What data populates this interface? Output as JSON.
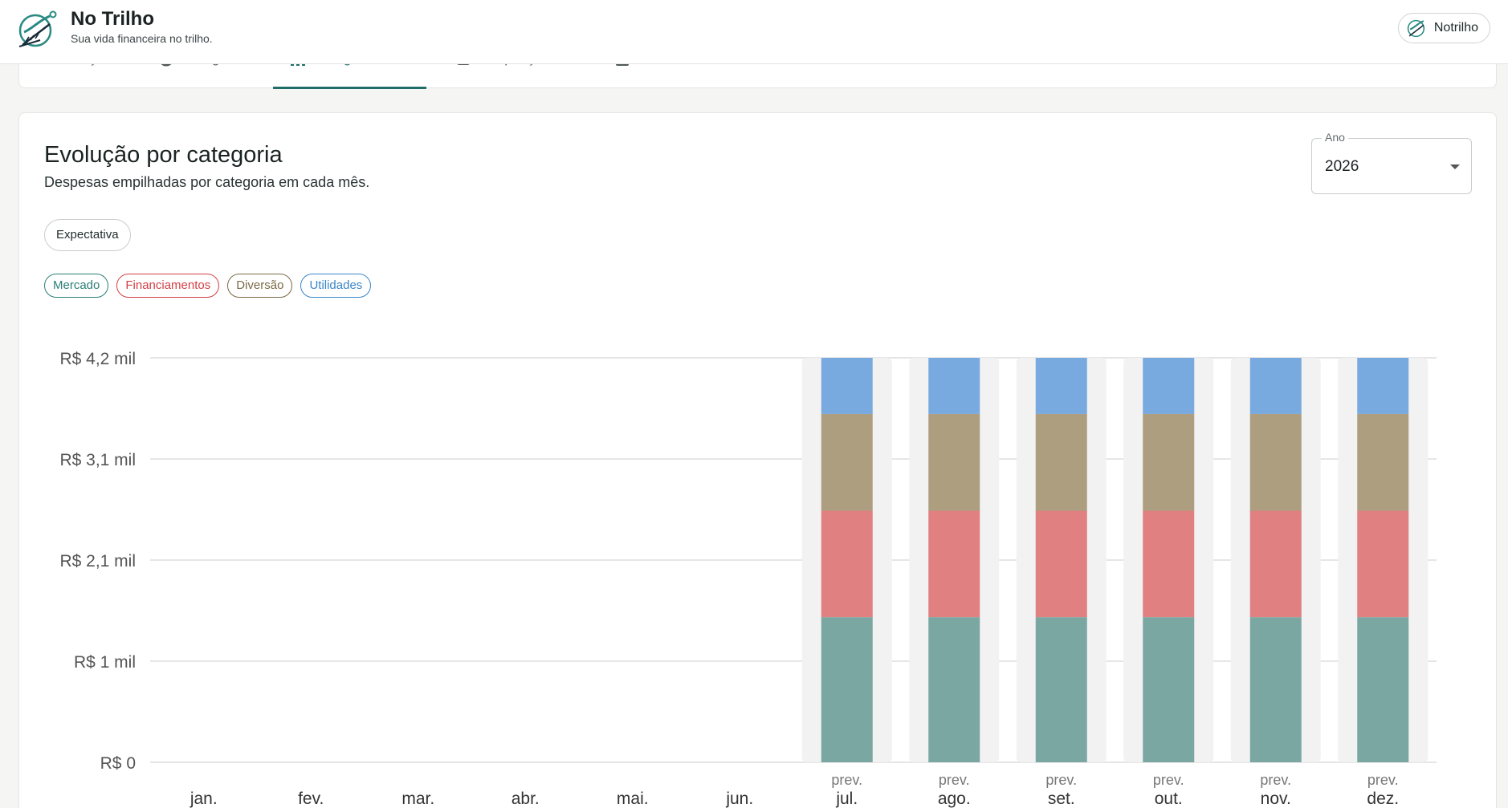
{
  "header": {
    "title": "No Trilho",
    "subtitle": "Sua vida financeira no trilho.",
    "user_button": "Notrilho"
  },
  "tabs": [
    {
      "label": "Evolução",
      "icon": "trend-icon"
    },
    {
      "label": "Categorias",
      "icon": "pie-icon"
    },
    {
      "label": "Categorias/mês",
      "icon": "bar-chart-icon",
      "active": true
    },
    {
      "label": "Poupança/mês",
      "icon": "piggy-bank-icon"
    },
    {
      "label": "Dívidas/mês",
      "icon": "debt-icon"
    }
  ],
  "card": {
    "title": "Evolução por categoria",
    "subtitle": "Despesas empilhadas por categoria em cada mês.",
    "year_label": "Ano",
    "year_value": "2026",
    "chip": "Expectativa"
  },
  "legend": [
    {
      "name": "Mercado",
      "color": "#2a7e77"
    },
    {
      "name": "Financiamentos",
      "color": "#d33f45"
    },
    {
      "name": "Diversão",
      "color": "#7a6a45"
    },
    {
      "name": "Utilidades",
      "color": "#3a86c8"
    }
  ],
  "chart_data": {
    "type": "bar",
    "stacked": true,
    "categories": [
      "jan.",
      "fev.",
      "mar.",
      "abr.",
      "mai.",
      "jun.",
      "jul.",
      "ago.",
      "set.",
      "out.",
      "nov.",
      "dez."
    ],
    "forecast_label": "prev.",
    "forecast_months": [
      false,
      false,
      false,
      false,
      false,
      false,
      true,
      true,
      true,
      true,
      true,
      true
    ],
    "series": [
      {
        "name": "Mercado",
        "color": "#7ba7a2",
        "values": [
          0,
          0,
          0,
          0,
          0,
          0,
          1500,
          1500,
          1500,
          1500,
          1500,
          1500
        ]
      },
      {
        "name": "Financiamentos",
        "color": "#e08080",
        "values": [
          0,
          0,
          0,
          0,
          0,
          0,
          1100,
          1100,
          1100,
          1100,
          1100,
          1100
        ]
      },
      {
        "name": "Diversão",
        "color": "#ad9e7f",
        "values": [
          0,
          0,
          0,
          0,
          0,
          0,
          1000,
          1000,
          1000,
          1000,
          1000,
          1000
        ]
      },
      {
        "name": "Utilidades",
        "color": "#79aadf",
        "values": [
          0,
          0,
          0,
          0,
          0,
          0,
          580,
          580,
          580,
          580,
          580,
          580
        ]
      }
    ],
    "yticks": [
      "R$ 0",
      "R$ 1 mil",
      "R$ 2,1 mil",
      "R$ 3,1 mil",
      "R$ 4,2 mil"
    ],
    "ylim": [
      0,
      4180
    ],
    "grid": true
  }
}
